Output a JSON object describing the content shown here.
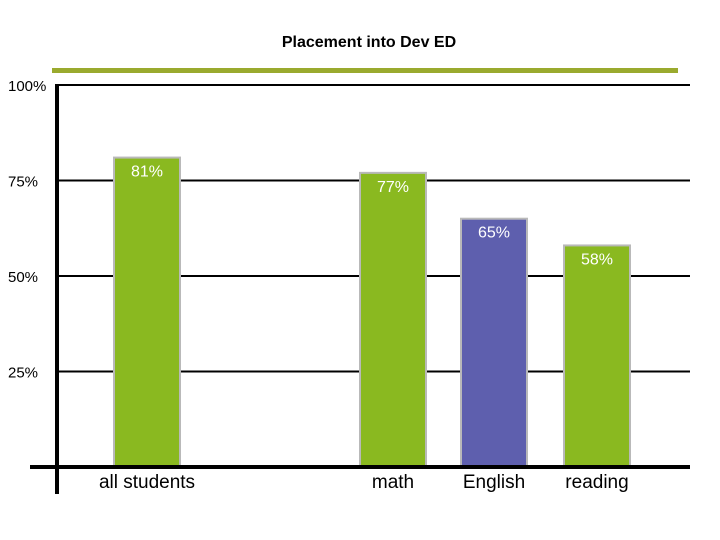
{
  "chart_data": {
    "type": "bar",
    "title": "Placement into Dev ED",
    "xlabel": "",
    "ylabel": "",
    "categories": [
      "all students",
      "math",
      "English",
      "reading"
    ],
    "values": [
      81,
      77,
      65,
      58
    ],
    "value_labels": [
      "81%",
      "77%",
      "65%",
      "58%"
    ],
    "bar_colors": [
      "#8ab920",
      "#8ab920",
      "#5e5fae",
      "#8ab920"
    ],
    "ylim": [
      0,
      100
    ],
    "yticks": [
      100,
      75,
      50,
      25
    ],
    "ytick_labels": [
      "100%",
      "75%",
      "50%",
      "25%"
    ],
    "grid": true,
    "legend": "none",
    "accent_color": "#9aaa2e"
  }
}
